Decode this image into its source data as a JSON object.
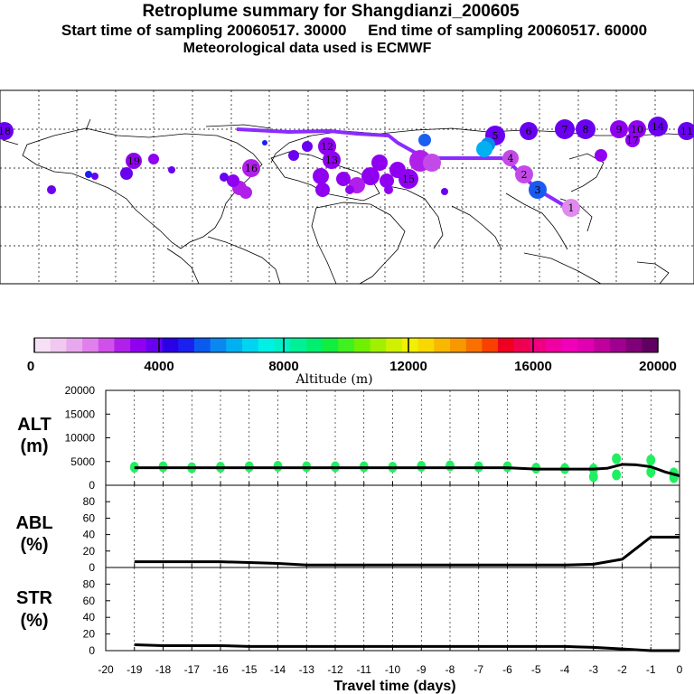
{
  "header": {
    "title": "Retroplume summary for Shangdianzi_200605",
    "sampling_line": "Start time of sampling 20060517. 30000     End time of sampling 20060517. 60000",
    "met_line": "Meteorological data used is ECMWF"
  },
  "colorbar": {
    "label": "Altitude (m)",
    "ticks": [
      "0",
      "4000",
      "8000",
      "12000",
      "16000",
      "20000"
    ],
    "colors": [
      "#f6e0f6",
      "#f0c8f0",
      "#e8a8ee",
      "#e080ec",
      "#d050ea",
      "#b020ea",
      "#9000f0",
      "#6a00f0",
      "#2a00e6",
      "#1a20ee",
      "#0a5af0",
      "#0a88f0",
      "#00b0f0",
      "#00d4f0",
      "#00f0e6",
      "#00f0c8",
      "#00f098",
      "#00ee70",
      "#10ee40",
      "#40f020",
      "#70f000",
      "#a0f000",
      "#d0f000",
      "#f0f000",
      "#f8d800",
      "#f8b800",
      "#f89800",
      "#f87000",
      "#f84000",
      "#f00020",
      "#f00050",
      "#f00080",
      "#f000a0",
      "#f000b8",
      "#e000b0",
      "#c0009c",
      "#a00090",
      "#800078",
      "#600060"
    ]
  },
  "map": {
    "labels": [
      "1",
      "2",
      "3",
      "4",
      "5",
      "6",
      "7",
      "8",
      "9",
      "10",
      "11",
      "12",
      "13",
      "14",
      "15",
      "16",
      "17",
      "18",
      "19"
    ]
  },
  "chart_data": [
    {
      "type": "line",
      "title": "ALT (m)",
      "ylabel": "ALT\n(m)",
      "ylim": [
        0,
        20000
      ],
      "yticks": [
        0,
        5000,
        10000,
        15000,
        20000
      ],
      "x": [
        -19,
        -18,
        -17,
        -16,
        -15,
        -14,
        -13,
        -12,
        -11,
        -10,
        -9,
        -8,
        -7,
        -6,
        -5,
        -4,
        -3,
        -2.5,
        -2,
        -1.5,
        -1,
        -0.5,
        0
      ],
      "values": [
        3700,
        3700,
        3700,
        3700,
        3700,
        3700,
        3700,
        3700,
        3700,
        3700,
        3700,
        3700,
        3700,
        3700,
        3400,
        3400,
        3400,
        3600,
        4400,
        4300,
        3900,
        2800,
        2000
      ],
      "scatter_color": "#20f060",
      "scatter": [
        [
          -19,
          3800
        ],
        [
          -18,
          3900
        ],
        [
          -17,
          3700
        ],
        [
          -16,
          3800
        ],
        [
          -15,
          3900
        ],
        [
          -14,
          4000
        ],
        [
          -13,
          3900
        ],
        [
          -12,
          3900
        ],
        [
          -11,
          3900
        ],
        [
          -10,
          3800
        ],
        [
          -9,
          4000
        ],
        [
          -8,
          4100
        ],
        [
          -7,
          3900
        ],
        [
          -6,
          3900
        ],
        [
          -5,
          3600
        ],
        [
          -4,
          3500
        ],
        [
          -3,
          3400
        ],
        [
          -3,
          1800
        ],
        [
          -2.2,
          5600
        ],
        [
          -2.2,
          2200
        ],
        [
          -1,
          5300
        ],
        [
          -1,
          2800
        ],
        [
          -0.2,
          1600
        ],
        [
          -0.2,
          2600
        ]
      ]
    },
    {
      "type": "line",
      "title": "ABL (%)",
      "ylabel": "ABL\n(%)",
      "ylim": [
        0,
        100
      ],
      "yticks": [
        0,
        20,
        40,
        60,
        80
      ],
      "x": [
        -19,
        -18,
        -17,
        -16,
        -15,
        -14,
        -13,
        -12,
        -11,
        -10,
        -9,
        -8,
        -7,
        -6,
        -5,
        -4,
        -3,
        -2,
        -1,
        0
      ],
      "values": [
        7,
        7,
        7,
        7,
        6,
        5,
        3,
        3,
        3,
        3,
        3,
        3,
        3,
        3,
        3,
        3,
        4,
        10,
        37,
        37
      ]
    },
    {
      "type": "line",
      "title": "STR (%)",
      "ylabel": "STR\n(%)",
      "ylim": [
        0,
        100
      ],
      "yticks": [
        0,
        20,
        40,
        60,
        80
      ],
      "x": [
        -19,
        -18,
        -17,
        -16,
        -15,
        -14,
        -13,
        -12,
        -11,
        -10,
        -9,
        -8,
        -7,
        -6,
        -5,
        -4,
        -3,
        -2,
        -1,
        0
      ],
      "values": [
        7,
        6,
        6,
        6,
        5,
        5,
        5,
        5,
        5,
        5,
        5,
        5,
        5,
        5,
        5,
        5,
        4,
        2,
        0,
        0
      ]
    }
  ],
  "xaxis": {
    "label": "Travel time (days)",
    "ticks": [
      "-20",
      "-19",
      "-18",
      "-17",
      "-16",
      "-15",
      "-14",
      "-13",
      "-12",
      "-11",
      "-10",
      "-9",
      "-8",
      "-7",
      "-6",
      "-5",
      "-4",
      "-3",
      "-2",
      "-1",
      "0"
    ]
  }
}
